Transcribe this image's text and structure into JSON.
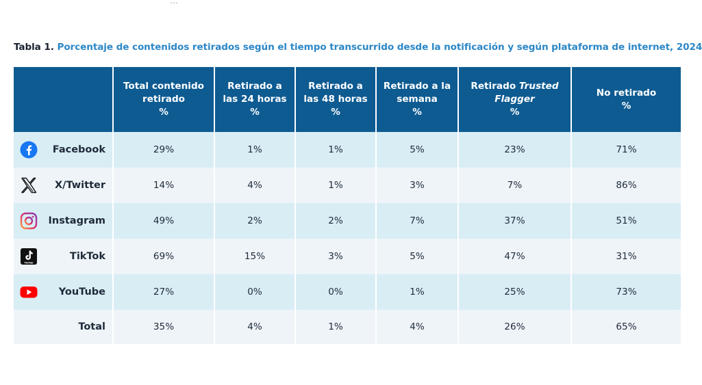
{
  "top_fragment": "…",
  "caption": {
    "label": "Tabla 1.",
    "text": "Porcentaje de contenidos retirados según el tiempo transcurrido desde la notificación y según plataforma de internet, 2024"
  },
  "headers": {
    "col1": {
      "line1": "Total contenido",
      "line2": "retirado",
      "unit": "%"
    },
    "col2": {
      "line1": "Retirado a",
      "line2": "las 24 horas",
      "unit": "%"
    },
    "col3": {
      "line1": "Retirado a",
      "line2": "las 48 horas",
      "unit": "%"
    },
    "col4": {
      "line1": "Retirado a la",
      "line2": "semana",
      "unit": "%"
    },
    "col5": {
      "line1": "Retirado",
      "line1_italic": "Trusted",
      "line2": "Flagger",
      "unit": "%"
    },
    "col6": {
      "line1": "No retirado",
      "unit": "%"
    }
  },
  "rows": [
    {
      "platform": "Facebook",
      "icon": "facebook-icon",
      "values": [
        "29%",
        "1%",
        "1%",
        "5%",
        "23%",
        "71%"
      ]
    },
    {
      "platform": "X/Twitter",
      "icon": "x-twitter-icon",
      "values": [
        "14%",
        "4%",
        "1%",
        "3%",
        "7%",
        "86%"
      ]
    },
    {
      "platform": "Instagram",
      "icon": "instagram-icon",
      "values": [
        "49%",
        "2%",
        "2%",
        "7%",
        "37%",
        "51%"
      ]
    },
    {
      "platform": "TikTok",
      "icon": "tiktok-icon",
      "icon_text": "TikTok",
      "values": [
        "69%",
        "15%",
        "3%",
        "5%",
        "47%",
        "31%"
      ]
    },
    {
      "platform": "YouTube",
      "icon": "youtube-icon",
      "values": [
        "27%",
        "0%",
        "0%",
        "1%",
        "25%",
        "73%"
      ]
    }
  ],
  "total": {
    "label": "Total",
    "values": [
      "35%",
      "4%",
      "1%",
      "4%",
      "26%",
      "65%"
    ]
  },
  "colors": {
    "header_bg": "#0e5b92",
    "caption_accent": "#2c87c7",
    "row_odd": "#d9edf5",
    "row_even": "#eef4f8",
    "facebook": "#1877f2",
    "youtube": "#ff0000"
  }
}
